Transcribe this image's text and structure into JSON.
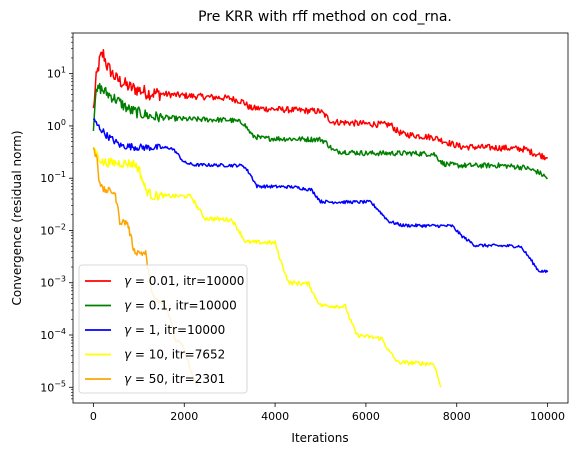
{
  "chart_data": {
    "type": "line",
    "title": "Pre KRR with rff method on cod_rna.",
    "xlabel": "Iterations",
    "ylabel": "Convergence (residual norm)",
    "xlim": [
      -450,
      10450
    ],
    "ylim": [
      5e-06,
      60
    ],
    "yscale": "log",
    "grid": false,
    "legend_position": "lower-left",
    "x_ticks": [
      0,
      2000,
      4000,
      6000,
      8000,
      10000
    ],
    "x_tick_labels": [
      "0",
      "2000",
      "4000",
      "6000",
      "8000",
      "10000"
    ],
    "y_ticks": [
      1e-05,
      0.0001,
      0.001,
      0.01,
      0.1,
      1,
      10
    ],
    "y_tick_labels": [
      {
        "base": "10",
        "exp": "−5"
      },
      {
        "base": "10",
        "exp": "−4"
      },
      {
        "base": "10",
        "exp": "−3"
      },
      {
        "base": "10",
        "exp": "−2"
      },
      {
        "base": "10",
        "exp": "−1"
      },
      {
        "base": "10",
        "exp": "0"
      },
      {
        "base": "10",
        "exp": "1"
      }
    ],
    "series": [
      {
        "legend": {
          "gamma": "0.01",
          "itr": "itr=10000"
        },
        "color": "#ff0000",
        "noise": 0.06,
        "points": [
          [
            0,
            2.0
          ],
          [
            60,
            8
          ],
          [
            150,
            20
          ],
          [
            220,
            24
          ],
          [
            300,
            14
          ],
          [
            500,
            8
          ],
          [
            800,
            5.5
          ],
          [
            1200,
            4.3
          ],
          [
            2000,
            3.8
          ],
          [
            3000,
            3.4
          ],
          [
            3300,
            2.9
          ],
          [
            3450,
            2.2
          ],
          [
            4200,
            2.05
          ],
          [
            5000,
            1.9
          ],
          [
            5100,
            1.6
          ],
          [
            5250,
            1.2
          ],
          [
            6000,
            1.1
          ],
          [
            6550,
            1.05
          ],
          [
            6650,
            0.85
          ],
          [
            6800,
            0.7
          ],
          [
            7500,
            0.6
          ],
          [
            7900,
            0.45
          ],
          [
            8100,
            0.4
          ],
          [
            9000,
            0.38
          ],
          [
            9500,
            0.36
          ],
          [
            9700,
            0.3
          ],
          [
            10000,
            0.25
          ]
        ]
      },
      {
        "legend": {
          "gamma": "0.1",
          "itr": "itr=10000"
        },
        "color": "#008000",
        "noise": 0.05,
        "points": [
          [
            0,
            1.0
          ],
          [
            40,
            3.5
          ],
          [
            120,
            5.5
          ],
          [
            250,
            4.5
          ],
          [
            500,
            3.2
          ],
          [
            800,
            2.0
          ],
          [
            1300,
            1.5
          ],
          [
            2000,
            1.35
          ],
          [
            3000,
            1.3
          ],
          [
            3300,
            1.15
          ],
          [
            3500,
            0.65
          ],
          [
            3700,
            0.58
          ],
          [
            5000,
            0.55
          ],
          [
            5100,
            0.5
          ],
          [
            5300,
            0.33
          ],
          [
            6000,
            0.3
          ],
          [
            7000,
            0.3
          ],
          [
            7500,
            0.29
          ],
          [
            7700,
            0.19
          ],
          [
            8000,
            0.175
          ],
          [
            9000,
            0.175
          ],
          [
            9500,
            0.16
          ],
          [
            9800,
            0.13
          ],
          [
            10000,
            0.1
          ]
        ]
      },
      {
        "legend": {
          "gamma": "1",
          "itr": "itr=10000"
        },
        "color": "#0000ff",
        "noise": 0.03,
        "points": [
          [
            0,
            1.3
          ],
          [
            100,
            1.0
          ],
          [
            300,
            0.65
          ],
          [
            600,
            0.42
          ],
          [
            1000,
            0.39
          ],
          [
            1700,
            0.38
          ],
          [
            1800,
            0.33
          ],
          [
            2000,
            0.2
          ],
          [
            2200,
            0.18
          ],
          [
            3300,
            0.175
          ],
          [
            3450,
            0.12
          ],
          [
            3600,
            0.07
          ],
          [
            4400,
            0.068
          ],
          [
            4800,
            0.06
          ],
          [
            5000,
            0.036
          ],
          [
            5200,
            0.035
          ],
          [
            6100,
            0.035
          ],
          [
            6250,
            0.026
          ],
          [
            6500,
            0.015
          ],
          [
            6800,
            0.0125
          ],
          [
            7900,
            0.0122
          ],
          [
            8100,
            0.008
          ],
          [
            8400,
            0.0052
          ],
          [
            9400,
            0.005
          ],
          [
            9600,
            0.003
          ],
          [
            9800,
            0.0017
          ],
          [
            10000,
            0.0016
          ]
        ]
      },
      {
        "legend": {
          "gamma": "10",
          "itr": "itr=7652"
        },
        "color": "#ffff00",
        "noise": 0.04,
        "points": [
          [
            0,
            0.4
          ],
          [
            80,
            0.28
          ],
          [
            200,
            0.2
          ],
          [
            900,
            0.19
          ],
          [
            1000,
            0.15
          ],
          [
            1150,
            0.06
          ],
          [
            1300,
            0.046
          ],
          [
            2150,
            0.045
          ],
          [
            2250,
            0.032
          ],
          [
            2450,
            0.017
          ],
          [
            3050,
            0.016
          ],
          [
            3200,
            0.01
          ],
          [
            3350,
            0.006
          ],
          [
            4000,
            0.0058
          ],
          [
            4100,
            0.003
          ],
          [
            4300,
            0.001
          ],
          [
            4750,
            0.00095
          ],
          [
            4850,
            0.0006
          ],
          [
            5000,
            0.00037
          ],
          [
            5550,
            0.00035
          ],
          [
            5650,
            0.0002
          ],
          [
            5800,
            0.0001
          ],
          [
            6350,
            8.5e-05
          ],
          [
            6500,
            5e-05
          ],
          [
            6700,
            3e-05
          ],
          [
            7500,
            2.8e-05
          ],
          [
            7652,
            1e-05
          ]
        ]
      },
      {
        "legend": {
          "gamma": "50",
          "itr": "itr=2301"
        },
        "color": "#ffa500",
        "noise": 0.03,
        "points": [
          [
            0,
            0.35
          ],
          [
            80,
            0.25
          ],
          [
            120,
            0.1
          ],
          [
            200,
            0.06
          ],
          [
            450,
            0.055
          ],
          [
            500,
            0.04
          ],
          [
            580,
            0.015
          ],
          [
            750,
            0.014
          ],
          [
            800,
            0.009
          ],
          [
            900,
            0.004
          ],
          [
            1150,
            0.0036
          ],
          [
            1250,
            0.001
          ],
          [
            1350,
            0.00045
          ],
          [
            1550,
            0.0004
          ],
          [
            1700,
            0.0002
          ],
          [
            1800,
            8e-05
          ],
          [
            1950,
            7e-05
          ],
          [
            2050,
            4e-05
          ],
          [
            2200,
            1.5e-05
          ],
          [
            2301,
            1.05e-05
          ]
        ]
      }
    ]
  }
}
